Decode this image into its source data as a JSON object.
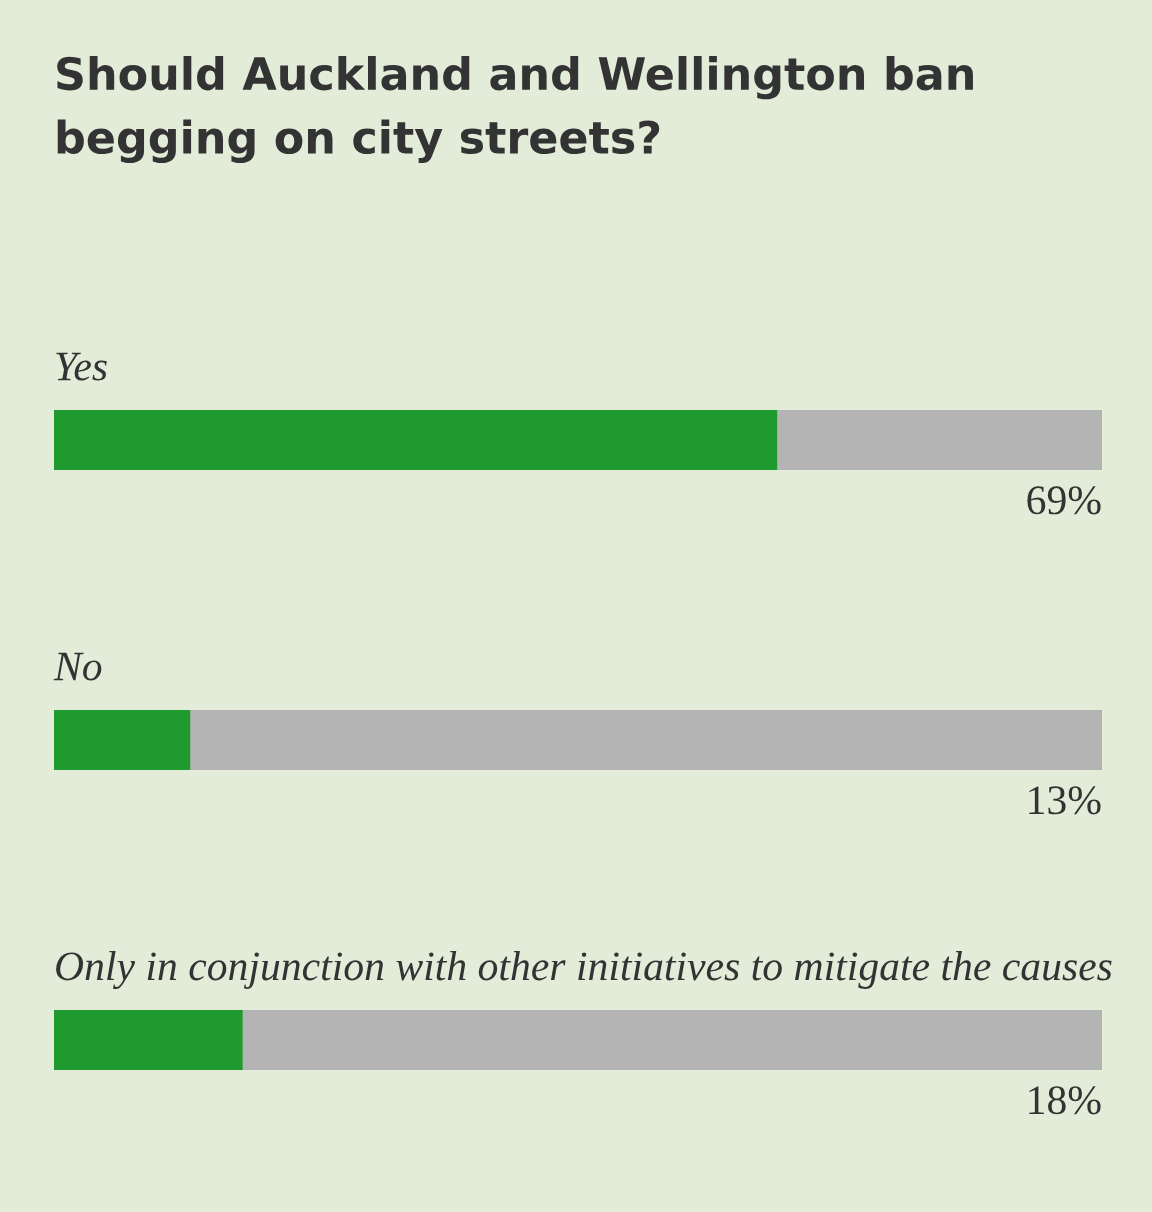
{
  "chart_data": {
    "type": "bar",
    "orientation": "horizontal",
    "title": "Should Auckland and Wellington ban begging on city streets?",
    "categories": [
      "Yes",
      "No",
      "Only in conjunction with other initiatives to mitigate the causes"
    ],
    "values": [
      69,
      13,
      18
    ],
    "value_labels": [
      "69%",
      "13%",
      "18%"
    ],
    "color": "#1f9a2f",
    "xlim": [
      0,
      100
    ]
  }
}
